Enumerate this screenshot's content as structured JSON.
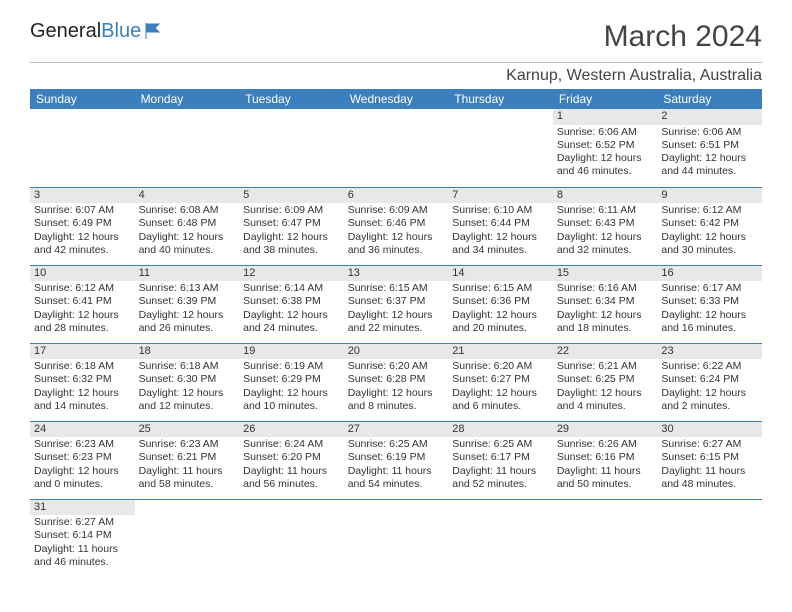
{
  "logo": {
    "text1": "General",
    "text2": "Blue"
  },
  "title": "March 2024",
  "location": "Karnup, Western Australia, Australia",
  "columns": [
    "Sunday",
    "Monday",
    "Tuesday",
    "Wednesday",
    "Thursday",
    "Friday",
    "Saturday"
  ],
  "colors": {
    "header_bg": "#3b7fbf",
    "header_text": "#ffffff",
    "daynum_bg": "#e8e8e8",
    "row_border": "#3b7fbf"
  },
  "weeks": [
    [
      null,
      null,
      null,
      null,
      null,
      {
        "n": "1",
        "sr": "6:06 AM",
        "ss": "6:52 PM",
        "dl": "12 hours and 46 minutes."
      },
      {
        "n": "2",
        "sr": "6:06 AM",
        "ss": "6:51 PM",
        "dl": "12 hours and 44 minutes."
      }
    ],
    [
      {
        "n": "3",
        "sr": "6:07 AM",
        "ss": "6:49 PM",
        "dl": "12 hours and 42 minutes."
      },
      {
        "n": "4",
        "sr": "6:08 AM",
        "ss": "6:48 PM",
        "dl": "12 hours and 40 minutes."
      },
      {
        "n": "5",
        "sr": "6:09 AM",
        "ss": "6:47 PM",
        "dl": "12 hours and 38 minutes."
      },
      {
        "n": "6",
        "sr": "6:09 AM",
        "ss": "6:46 PM",
        "dl": "12 hours and 36 minutes."
      },
      {
        "n": "7",
        "sr": "6:10 AM",
        "ss": "6:44 PM",
        "dl": "12 hours and 34 minutes."
      },
      {
        "n": "8",
        "sr": "6:11 AM",
        "ss": "6:43 PM",
        "dl": "12 hours and 32 minutes."
      },
      {
        "n": "9",
        "sr": "6:12 AM",
        "ss": "6:42 PM",
        "dl": "12 hours and 30 minutes."
      }
    ],
    [
      {
        "n": "10",
        "sr": "6:12 AM",
        "ss": "6:41 PM",
        "dl": "12 hours and 28 minutes."
      },
      {
        "n": "11",
        "sr": "6:13 AM",
        "ss": "6:39 PM",
        "dl": "12 hours and 26 minutes."
      },
      {
        "n": "12",
        "sr": "6:14 AM",
        "ss": "6:38 PM",
        "dl": "12 hours and 24 minutes."
      },
      {
        "n": "13",
        "sr": "6:15 AM",
        "ss": "6:37 PM",
        "dl": "12 hours and 22 minutes."
      },
      {
        "n": "14",
        "sr": "6:15 AM",
        "ss": "6:36 PM",
        "dl": "12 hours and 20 minutes."
      },
      {
        "n": "15",
        "sr": "6:16 AM",
        "ss": "6:34 PM",
        "dl": "12 hours and 18 minutes."
      },
      {
        "n": "16",
        "sr": "6:17 AM",
        "ss": "6:33 PM",
        "dl": "12 hours and 16 minutes."
      }
    ],
    [
      {
        "n": "17",
        "sr": "6:18 AM",
        "ss": "6:32 PM",
        "dl": "12 hours and 14 minutes."
      },
      {
        "n": "18",
        "sr": "6:18 AM",
        "ss": "6:30 PM",
        "dl": "12 hours and 12 minutes."
      },
      {
        "n": "19",
        "sr": "6:19 AM",
        "ss": "6:29 PM",
        "dl": "12 hours and 10 minutes."
      },
      {
        "n": "20",
        "sr": "6:20 AM",
        "ss": "6:28 PM",
        "dl": "12 hours and 8 minutes."
      },
      {
        "n": "21",
        "sr": "6:20 AM",
        "ss": "6:27 PM",
        "dl": "12 hours and 6 minutes."
      },
      {
        "n": "22",
        "sr": "6:21 AM",
        "ss": "6:25 PM",
        "dl": "12 hours and 4 minutes."
      },
      {
        "n": "23",
        "sr": "6:22 AM",
        "ss": "6:24 PM",
        "dl": "12 hours and 2 minutes."
      }
    ],
    [
      {
        "n": "24",
        "sr": "6:23 AM",
        "ss": "6:23 PM",
        "dl": "12 hours and 0 minutes."
      },
      {
        "n": "25",
        "sr": "6:23 AM",
        "ss": "6:21 PM",
        "dl": "11 hours and 58 minutes."
      },
      {
        "n": "26",
        "sr": "6:24 AM",
        "ss": "6:20 PM",
        "dl": "11 hours and 56 minutes."
      },
      {
        "n": "27",
        "sr": "6:25 AM",
        "ss": "6:19 PM",
        "dl": "11 hours and 54 minutes."
      },
      {
        "n": "28",
        "sr": "6:25 AM",
        "ss": "6:17 PM",
        "dl": "11 hours and 52 minutes."
      },
      {
        "n": "29",
        "sr": "6:26 AM",
        "ss": "6:16 PM",
        "dl": "11 hours and 50 minutes."
      },
      {
        "n": "30",
        "sr": "6:27 AM",
        "ss": "6:15 PM",
        "dl": "11 hours and 48 minutes."
      }
    ],
    [
      {
        "n": "31",
        "sr": "6:27 AM",
        "ss": "6:14 PM",
        "dl": "11 hours and 46 minutes."
      },
      null,
      null,
      null,
      null,
      null,
      null
    ]
  ],
  "labels": {
    "sunrise": "Sunrise: ",
    "sunset": "Sunset: ",
    "daylight": "Daylight: "
  }
}
